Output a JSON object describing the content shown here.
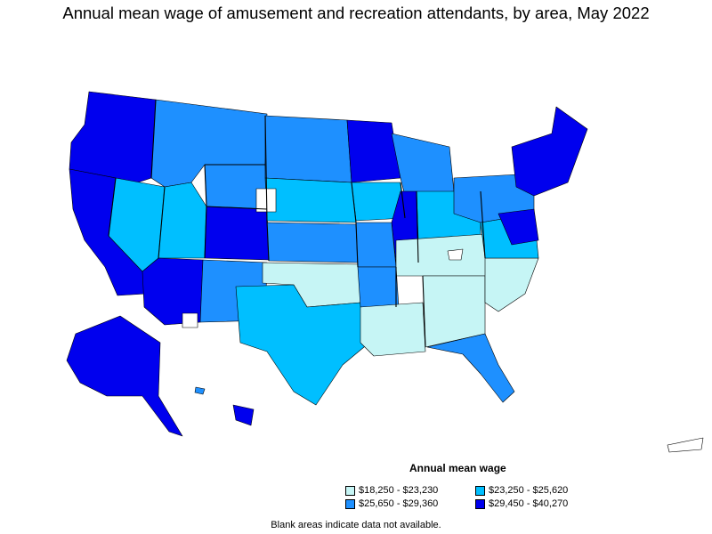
{
  "title": "Annual mean wage of amusement and recreation attendants, by area, May 2022",
  "legend": {
    "title": "Annual mean wage",
    "items": [
      {
        "label": "$18,250 - $23,230",
        "color": "#c6f5f5"
      },
      {
        "label": "$23,250 - $25,620",
        "color": "#00bfff"
      },
      {
        "label": "$25,650 - $29,360",
        "color": "#1e90ff"
      },
      {
        "label": "$29,450 - $40,270",
        "color": "#0000ee"
      }
    ]
  },
  "note": "Blank areas indicate data not available.",
  "colors": {
    "class1": "#c6f5f5",
    "class2": "#00bfff",
    "class3": "#1e90ff",
    "class4": "#0000ee",
    "blank": "#ffffff",
    "border": "#000000"
  }
}
